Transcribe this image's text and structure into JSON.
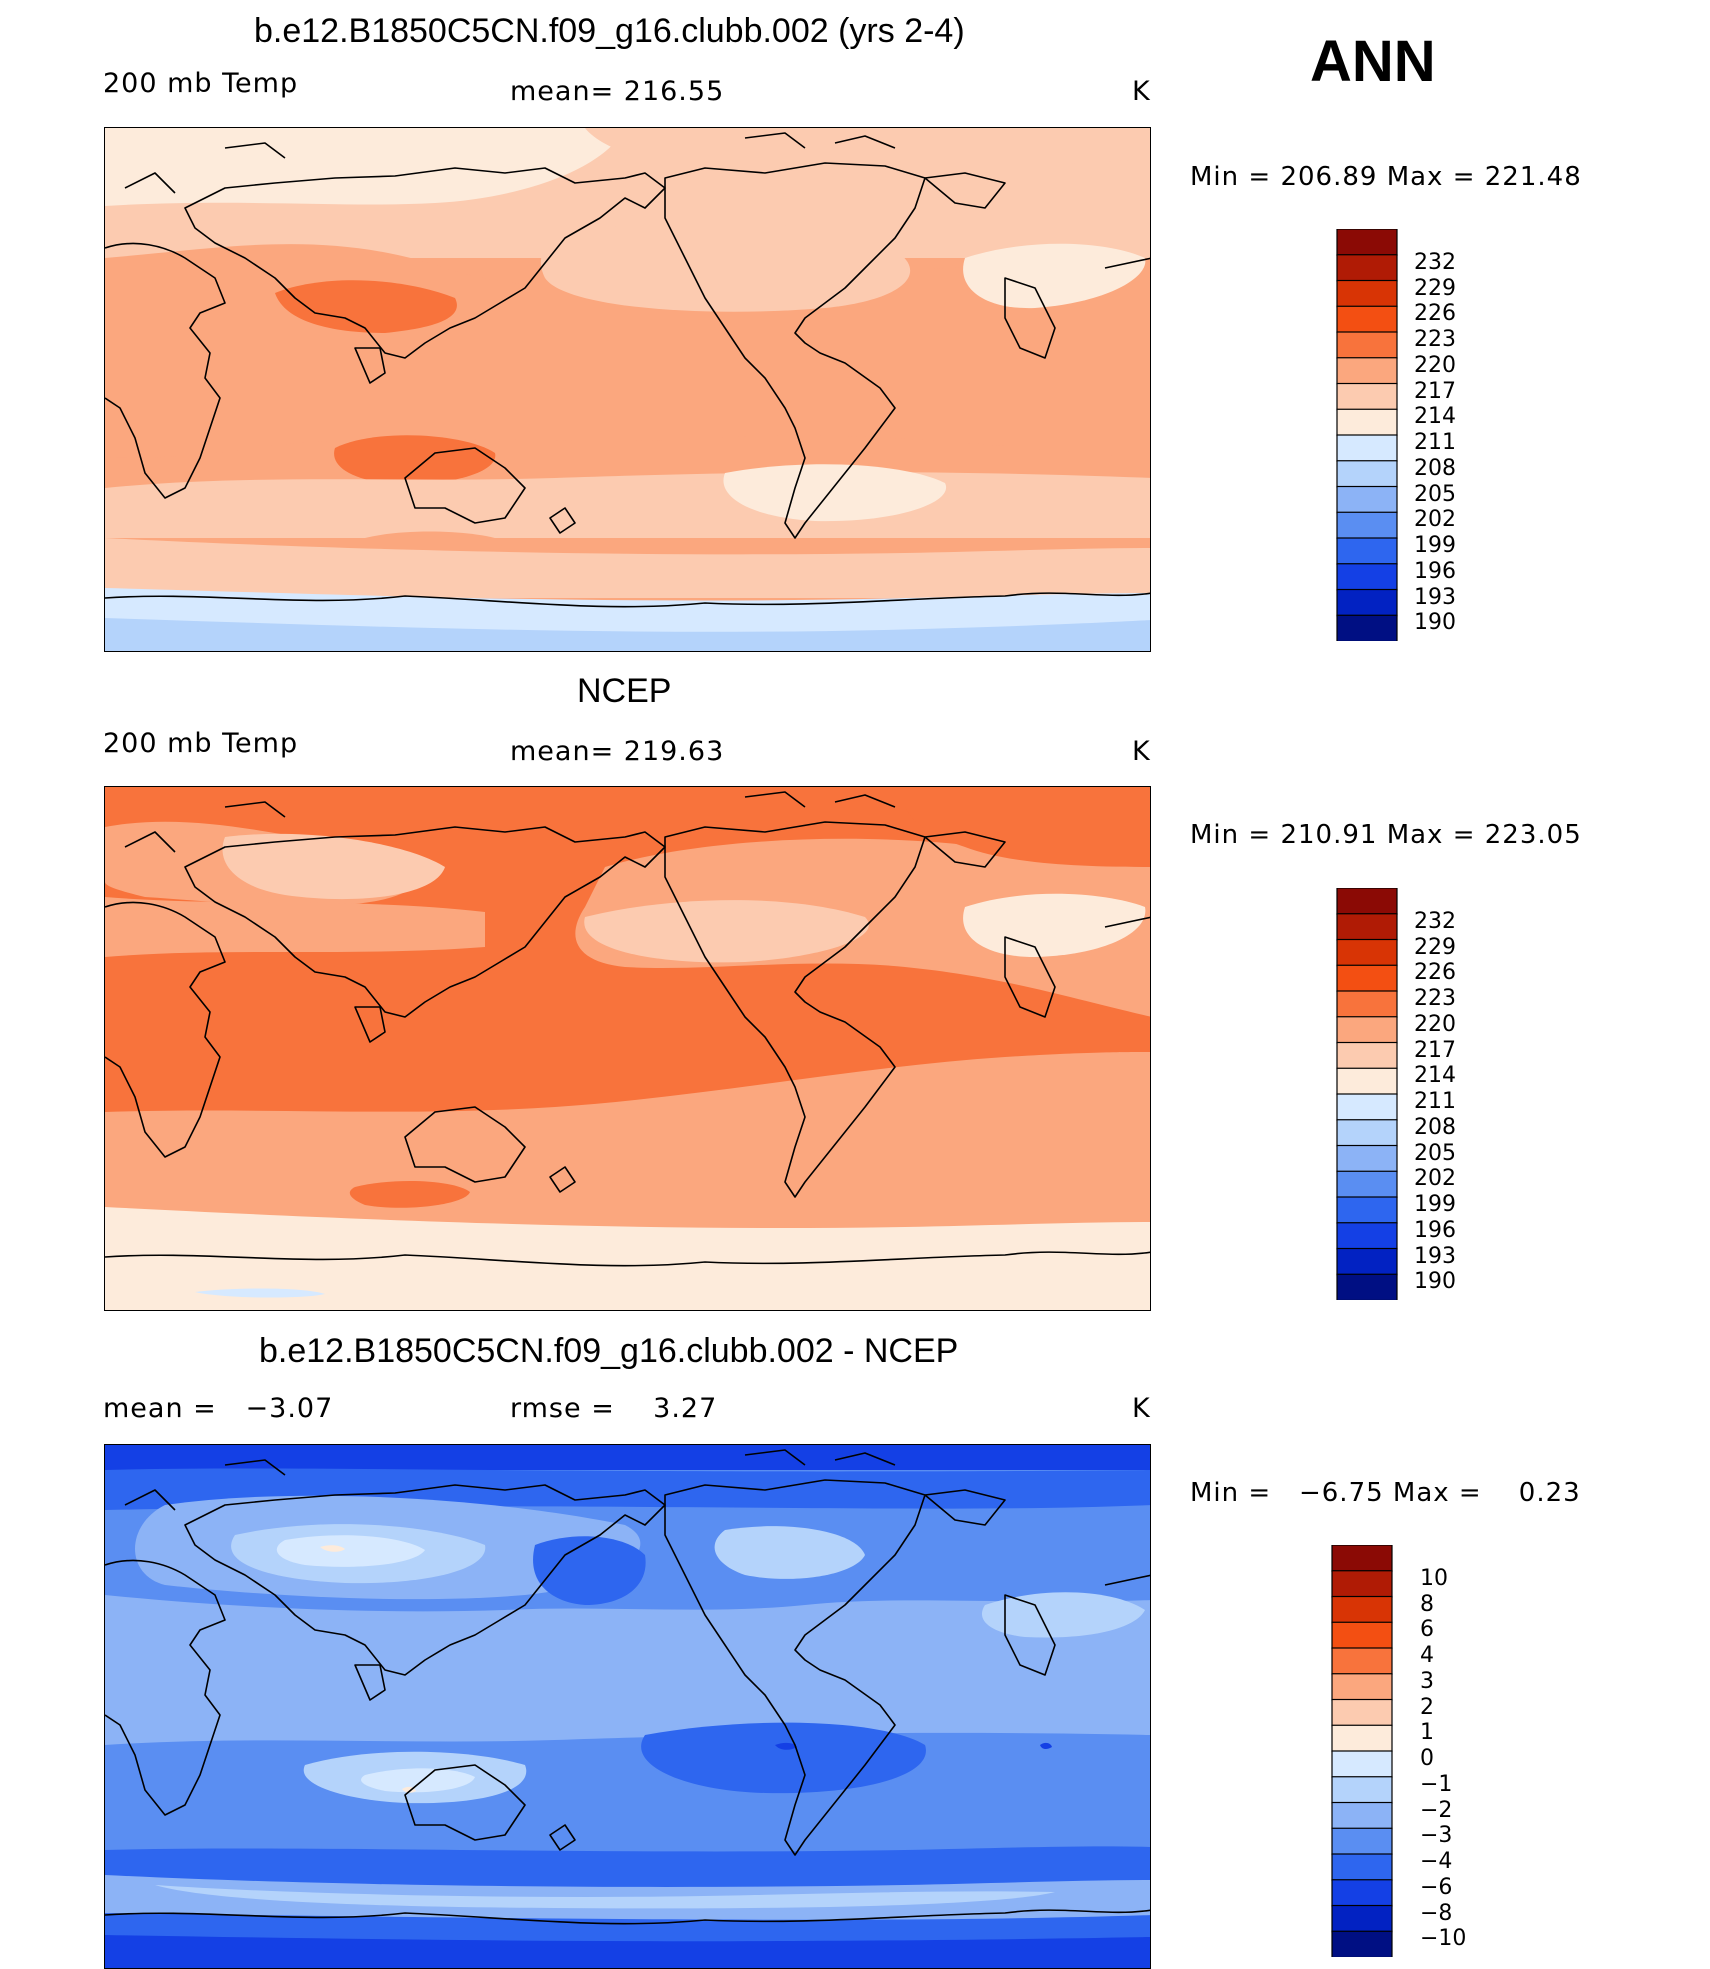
{
  "season_label": "ANN",
  "chart_data": [
    {
      "type": "heatmap",
      "title": "b.e12.B1850C5CN.f09_g16.clubb.002 (yrs 2-4)",
      "field": "200 mb Temp",
      "stat_text": "mean= 216.55",
      "units": "K",
      "min_max_text": "Min = 206.89 Max = 221.48",
      "min": 206.89,
      "max": 221.48,
      "mean": 216.55,
      "colorbar": {
        "labels": [
          "232",
          "229",
          "226",
          "223",
          "220",
          "217",
          "214",
          "211",
          "208",
          "205",
          "202",
          "199",
          "196",
          "193",
          "190"
        ],
        "colors": [
          "#8b0a05",
          "#b01b05",
          "#d83405",
          "#f34f12",
          "#f8733c",
          "#fba77e",
          "#fccbb0",
          "#fdebdb",
          "#d6e9ff",
          "#b4d3fb",
          "#8cb3f6",
          "#5a8ef2",
          "#2e66ef",
          "#1440e5",
          "#0222c2",
          "#000f83"
        ]
      }
    },
    {
      "type": "heatmap",
      "title": "NCEP",
      "field": "200 mb Temp",
      "stat_text": "mean= 219.63",
      "units": "K",
      "min_max_text": "Min = 210.91 Max = 223.05",
      "min": 210.91,
      "max": 223.05,
      "mean": 219.63,
      "colorbar": {
        "labels": [
          "232",
          "229",
          "226",
          "223",
          "220",
          "217",
          "214",
          "211",
          "208",
          "205",
          "202",
          "199",
          "196",
          "193",
          "190"
        ],
        "colors": [
          "#8b0a05",
          "#b01b05",
          "#d83405",
          "#f34f12",
          "#f8733c",
          "#fba77e",
          "#fccbb0",
          "#fdebdb",
          "#d6e9ff",
          "#b4d3fb",
          "#8cb3f6",
          "#5a8ef2",
          "#2e66ef",
          "#1440e5",
          "#0222c2",
          "#000f83"
        ]
      }
    },
    {
      "type": "heatmap",
      "title": "b.e12.B1850C5CN.f09_g16.clubb.002 - NCEP",
      "stat_text_left": "mean =   −3.07",
      "stat_text_mid": "rmse =    3.27",
      "units": "K",
      "min_max_text": "Min =   −6.75 Max =    0.23",
      "min": -6.75,
      "max": 0.23,
      "mean": -3.07,
      "rmse": 3.27,
      "colorbar": {
        "labels": [
          "10",
          "8",
          "6",
          "4",
          "3",
          "2",
          "1",
          "0",
          "−1",
          "−2",
          "−3",
          "−4",
          "−6",
          "−8",
          "−10"
        ],
        "colors": [
          "#8b0a05",
          "#b01b05",
          "#d83405",
          "#f34f12",
          "#f8733c",
          "#fba77e",
          "#fccbb0",
          "#fdebdb",
          "#d6e9ff",
          "#b4d3fb",
          "#8cb3f6",
          "#5a8ef2",
          "#2e66ef",
          "#1440e5",
          "#0222c2",
          "#000f83"
        ]
      }
    }
  ]
}
